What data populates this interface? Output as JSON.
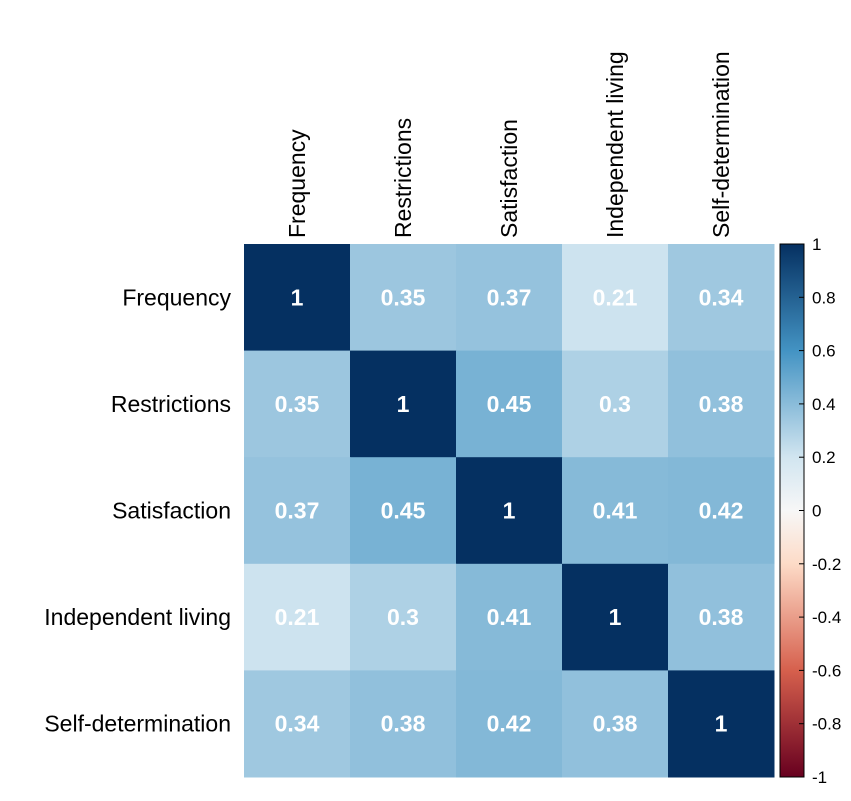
{
  "chart_data": {
    "type": "heatmap",
    "variables": [
      "Frequency",
      "Restrictions",
      "Satisfaction",
      "Independent living",
      "Self-determination"
    ],
    "matrix": [
      [
        1,
        0.35,
        0.37,
        0.21,
        0.34
      ],
      [
        0.35,
        1,
        0.45,
        0.3,
        0.38
      ],
      [
        0.37,
        0.45,
        1,
        0.41,
        0.42
      ],
      [
        0.21,
        0.3,
        0.41,
        1,
        0.38
      ],
      [
        0.34,
        0.38,
        0.42,
        0.38,
        1
      ]
    ],
    "labels": [
      [
        "1",
        "0.35",
        "0.37",
        "0.21",
        "0.34"
      ],
      [
        "0.35",
        "1",
        "0.45",
        "0.3",
        "0.38"
      ],
      [
        "0.37",
        "0.45",
        "1",
        "0.41",
        "0.42"
      ],
      [
        "0.21",
        "0.3",
        "0.41",
        "1",
        "0.38"
      ],
      [
        "0.34",
        "0.38",
        "0.42",
        "0.38",
        "1"
      ]
    ],
    "colorbar": {
      "range": [
        -1,
        1
      ],
      "ticks": [
        "1",
        "0.8",
        "0.6",
        "0.4",
        "0.2",
        "0",
        "-0.2",
        "-0.4",
        "-0.6",
        "-0.8",
        "-1"
      ],
      "tick_values": [
        1,
        0.8,
        0.6,
        0.4,
        0.2,
        0,
        -0.2,
        -0.4,
        -0.6,
        -0.8,
        -1
      ],
      "colors": {
        "negative_end": "#67001f",
        "neg_mid": "#d6604d",
        "neg_light": "#fddbc7",
        "center": "#f7f7f7",
        "pos_light": "#d1e5f0",
        "pos_mid": "#4393c3",
        "positive_end": "#053061"
      }
    }
  }
}
